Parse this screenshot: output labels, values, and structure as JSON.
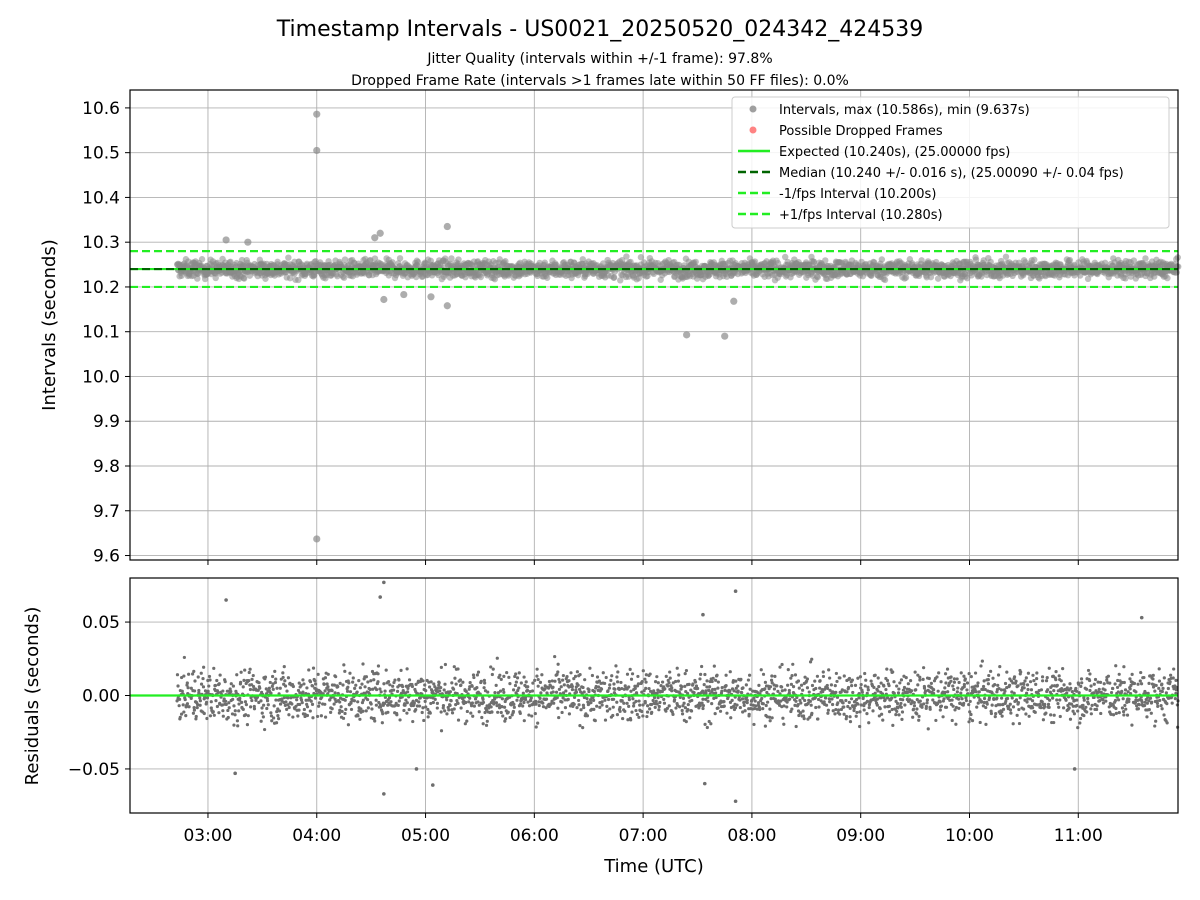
{
  "chart_data": [
    {
      "type": "scatter",
      "title": "Timestamp Intervals - US0021_20250520_024342_424539",
      "subtitle_lines": [
        "Jitter Quality (intervals within +/-1 frame): 97.8%",
        "Dropped Frame Rate (intervals >1 frames late within 50 FF files): 0.0%"
      ],
      "xlabel": "",
      "ylabel": "Intervals (seconds)",
      "x_axis": "time",
      "xlim": [
        "02:17",
        "11:55"
      ],
      "ylim": [
        9.59,
        10.64
      ],
      "y_ticks": [
        "9.6",
        "9.7",
        "9.8",
        "9.9",
        "10.0",
        "10.1",
        "10.2",
        "10.3",
        "10.4",
        "10.5",
        "10.6"
      ],
      "grid": true,
      "legend_position": "top-right",
      "legend": [
        {
          "label": "Intervals, max (10.586s), min (9.637s)",
          "marker": "dot",
          "color": "#808080"
        },
        {
          "label": "Possible Dropped Frames",
          "marker": "dot",
          "color": "#ff5a5a"
        },
        {
          "label": "Expected (10.240s), (25.00000 fps)",
          "marker": "solid",
          "color": "#22ee22"
        },
        {
          "label": "Median (10.240 +/- 0.016 s), (25.00090 +/- 0.04 fps)",
          "marker": "dashed",
          "color": "#006400"
        },
        {
          "label": "-1/fps Interval (10.200s)",
          "marker": "dashed",
          "color": "#22ee22"
        },
        {
          "label": "+1/fps Interval (10.280s)",
          "marker": "dashed",
          "color": "#22ee22"
        }
      ],
      "reference_lines": {
        "expected": 10.24,
        "median": 10.24,
        "lower": 10.2,
        "upper": 10.28
      },
      "series": [
        {
          "name": "Intervals, max (10.586s), min (9.637s)",
          "x_range": [
            "02:43",
            "11:55"
          ],
          "typical_range": [
            10.21,
            10.27
          ],
          "notable_points": [
            {
              "x": "04:00",
              "y": 10.586
            },
            {
              "x": "04:00",
              "y": 10.505
            },
            {
              "x": "04:00",
              "y": 9.637
            },
            {
              "x": "05:12",
              "y": 10.335
            },
            {
              "x": "04:35",
              "y": 10.32
            },
            {
              "x": "04:32",
              "y": 10.31
            },
            {
              "x": "07:24",
              "y": 10.093
            },
            {
              "x": "07:45",
              "y": 10.09
            },
            {
              "x": "07:50",
              "y": 10.168
            },
            {
              "x": "05:12",
              "y": 10.158
            },
            {
              "x": "03:10",
              "y": 10.305
            },
            {
              "x": "03:22",
              "y": 10.3
            },
            {
              "x": "04:37",
              "y": 10.172
            },
            {
              "x": "04:48",
              "y": 10.183
            },
            {
              "x": "05:03",
              "y": 10.178
            }
          ]
        }
      ]
    },
    {
      "type": "scatter",
      "xlabel": "Time (UTC)",
      "ylabel": "Residuals (seconds)",
      "x_axis": "time",
      "xlim": [
        "02:17",
        "11:55"
      ],
      "ylim": [
        -0.08,
        0.08
      ],
      "x_ticks": [
        "03:00",
        "04:00",
        "05:00",
        "06:00",
        "07:00",
        "08:00",
        "09:00",
        "10:00",
        "11:00"
      ],
      "y_ticks": [
        "−0.05",
        "0.00",
        "0.05"
      ],
      "grid": true,
      "reference_lines": {
        "zero": 0.0
      },
      "series": [
        {
          "name": "Residuals",
          "x_range": [
            "02:43",
            "11:55"
          ],
          "typical_range": [
            -0.03,
            0.03
          ],
          "notable_points": [
            {
              "x": "04:37",
              "y": 0.077
            },
            {
              "x": "07:51",
              "y": 0.071
            },
            {
              "x": "04:35",
              "y": 0.067
            },
            {
              "x": "03:10",
              "y": 0.065
            },
            {
              "x": "07:33",
              "y": 0.055
            },
            {
              "x": "11:35",
              "y": 0.053
            },
            {
              "x": "07:51",
              "y": -0.072
            },
            {
              "x": "04:37",
              "y": -0.067
            },
            {
              "x": "05:04",
              "y": -0.061
            },
            {
              "x": "07:34",
              "y": -0.06
            },
            {
              "x": "03:15",
              "y": -0.053
            },
            {
              "x": "10:58",
              "y": -0.05
            },
            {
              "x": "04:55",
              "y": -0.05
            }
          ]
        }
      ]
    }
  ]
}
